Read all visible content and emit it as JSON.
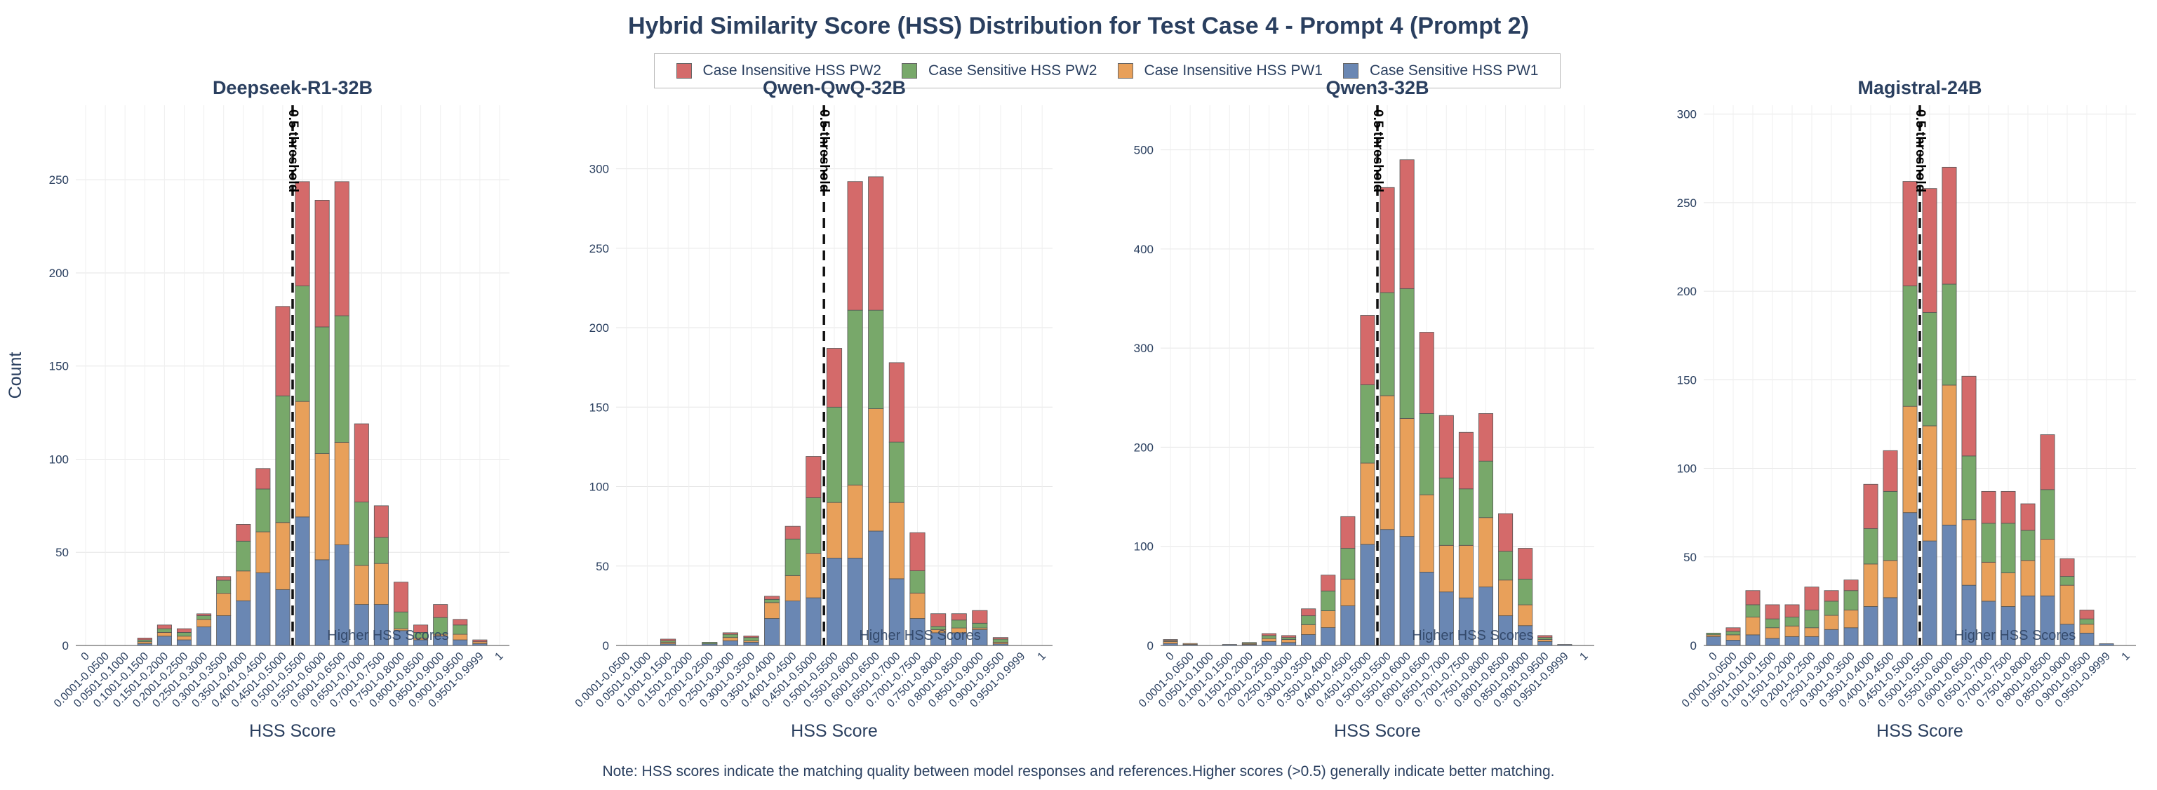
{
  "title": "Hybrid Similarity Score (HSS) Distribution for Test Case 4 - Prompt 4 (Prompt 2)",
  "note": "Note: HSS scores indicate the matching quality between model responses and references.Higher scores (>0.5) generally indicate better matching.",
  "legend": [
    {
      "label": "Case Insensitive HSS PW2",
      "color": "#d46a6a"
    },
    {
      "label": "Case Sensitive HSS PW2",
      "color": "#78a86a"
    },
    {
      "label": "Case Insensitive HSS PW1",
      "color": "#e8a05a"
    },
    {
      "label": "Case Sensitive HSS PW1",
      "color": "#6a87b3"
    }
  ],
  "chart_data": [
    {
      "type": "bar",
      "stacked": true,
      "title": "Deepseek-R1-32B",
      "xlabel": "HSS Score",
      "ylabel": "Count",
      "ylim": [
        0,
        290
      ],
      "yticks": [
        0,
        50,
        100,
        150,
        200,
        250
      ],
      "threshold_label": "0.5 threshold",
      "annotation": "Higher HSS Scores",
      "categories": [
        "0",
        "0.0001-0.0500",
        "0.0501-0.1000",
        "0.1001-0.1500",
        "0.1501-0.2000",
        "0.2001-0.2500",
        "0.2501-0.3000",
        "0.3001-0.3500",
        "0.3501-0.4000",
        "0.4001-0.4500",
        "0.4501-0.5000",
        "0.5001-0.5500",
        "0.5501-0.6000",
        "0.6001-0.6500",
        "0.6501-0.7000",
        "0.7001-0.7500",
        "0.7501-0.8000",
        "0.8001-0.8500",
        "0.8501-0.9000",
        "0.9001-0.9500",
        "0.9501-0.9999",
        "1"
      ],
      "series": [
        {
          "name": "Case Sensitive HSS PW1",
          "values": [
            0,
            0,
            0,
            1,
            5,
            3,
            10,
            16,
            24,
            39,
            30,
            69,
            46,
            54,
            22,
            22,
            8,
            3,
            5,
            3,
            1,
            0
          ]
        },
        {
          "name": "Case Insensitive HSS PW1",
          "values": [
            0,
            0,
            0,
            1,
            2,
            2,
            4,
            12,
            16,
            22,
            36,
            62,
            57,
            55,
            21,
            22,
            1,
            1,
            1,
            3,
            1,
            0
          ]
        },
        {
          "name": "Case Sensitive HSS PW2",
          "values": [
            0,
            0,
            0,
            1,
            2,
            2,
            2,
            7,
            16,
            23,
            68,
            62,
            68,
            68,
            34,
            14,
            9,
            3,
            9,
            5,
            0,
            0
          ]
        },
        {
          "name": "Case Insensitive HSS PW2",
          "values": [
            0,
            0,
            0,
            1,
            2,
            2,
            1,
            2,
            9,
            11,
            48,
            56,
            68,
            72,
            42,
            17,
            16,
            4,
            7,
            3,
            1,
            0
          ]
        }
      ]
    },
    {
      "type": "bar",
      "stacked": true,
      "title": "Qwen-QwQ-32B",
      "xlabel": "HSS Score",
      "ylim": [
        0,
        340
      ],
      "yticks": [
        0,
        50,
        100,
        150,
        200,
        250,
        300
      ],
      "threshold_label": "0.5 threshold",
      "annotation": "Higher HSS Scores",
      "categories": [
        "0.0001-0.0500",
        "0.0501-0.1000",
        "0.1001-0.1500",
        "0.1501-0.2000",
        "0.2001-0.2500",
        "0.2501-0.3000",
        "0.3001-0.3500",
        "0.3501-0.4000",
        "0.4001-0.4500",
        "0.4501-0.5000",
        "0.5001-0.5500",
        "0.5501-0.6000",
        "0.6001-0.6500",
        "0.6501-0.7000",
        "0.7001-0.7500",
        "0.7501-0.8000",
        "0.8001-0.8500",
        "0.8501-0.9000",
        "0.9001-0.9500",
        "0.9501-0.9999",
        "1"
      ],
      "series": [
        {
          "name": "Case Sensitive HSS PW1",
          "values": [
            0,
            0,
            1,
            0,
            1,
            3,
            2,
            17,
            28,
            30,
            55,
            55,
            72,
            42,
            17,
            8,
            8,
            10,
            1,
            0,
            0
          ]
        },
        {
          "name": "Case Insensitive HSS PW1",
          "values": [
            0,
            0,
            1,
            0,
            0,
            2,
            1,
            10,
            16,
            28,
            35,
            46,
            77,
            48,
            16,
            2,
            3,
            1,
            1,
            0,
            0
          ]
        },
        {
          "name": "Case Sensitive HSS PW2",
          "values": [
            0,
            0,
            1,
            0,
            1,
            2,
            2,
            2,
            23,
            35,
            60,
            110,
            62,
            38,
            14,
            2,
            5,
            3,
            2,
            0,
            0
          ]
        },
        {
          "name": "Case Insensitive HSS PW2",
          "values": [
            0,
            0,
            1,
            0,
            0,
            1,
            1,
            2,
            8,
            26,
            37,
            81,
            84,
            50,
            24,
            8,
            4,
            8,
            1,
            0,
            0
          ]
        }
      ]
    },
    {
      "type": "bar",
      "stacked": true,
      "title": "Qwen3-32B",
      "xlabel": "HSS Score",
      "ylim": [
        0,
        545
      ],
      "yticks": [
        0,
        100,
        200,
        300,
        400,
        500
      ],
      "threshold_label": "0.5 threshold",
      "annotation": "Higher HSS Scores",
      "categories": [
        "0",
        "0.0001-0.0500",
        "0.0501-0.1000",
        "0.1001-0.1500",
        "0.1501-0.2000",
        "0.2001-0.2500",
        "0.2501-0.3000",
        "0.3001-0.3500",
        "0.3501-0.4000",
        "0.4001-0.4500",
        "0.4501-0.5000",
        "0.5001-0.5500",
        "0.5501-0.6000",
        "0.6001-0.6500",
        "0.6501-0.7000",
        "0.7001-0.7500",
        "0.7501-0.8000",
        "0.8001-0.8500",
        "0.8501-0.9000",
        "0.9001-0.9500",
        "0.9501-0.9999",
        "1"
      ],
      "series": [
        {
          "name": "Case Sensitive HSS PW1",
          "values": [
            2,
            1,
            0,
            1,
            1,
            4,
            3,
            11,
            18,
            40,
            102,
            117,
            110,
            74,
            54,
            48,
            59,
            30,
            20,
            4,
            1,
            0
          ]
        },
        {
          "name": "Case Insensitive HSS PW1",
          "values": [
            2,
            1,
            0,
            0,
            1,
            3,
            3,
            10,
            17,
            27,
            82,
            135,
            119,
            78,
            47,
            53,
            70,
            36,
            21,
            2,
            0,
            0
          ]
        },
        {
          "name": "Case Sensitive HSS PW2",
          "values": [
            1,
            0,
            0,
            0,
            1,
            3,
            2,
            9,
            20,
            31,
            79,
            104,
            131,
            82,
            68,
            57,
            57,
            29,
            26,
            2,
            0,
            0
          ]
        },
        {
          "name": "Case Insensitive HSS PW2",
          "values": [
            1,
            0,
            0,
            0,
            0,
            2,
            2,
            7,
            16,
            32,
            70,
            106,
            130,
            82,
            63,
            57,
            48,
            38,
            31,
            2,
            0,
            0
          ]
        }
      ]
    },
    {
      "type": "bar",
      "stacked": true,
      "title": "Magistral-24B",
      "xlabel": "HSS Score",
      "ylim": [
        0,
        305
      ],
      "yticks": [
        0,
        50,
        100,
        150,
        200,
        250,
        300
      ],
      "threshold_label": "0.5 threshold",
      "annotation": "Higher HSS Scores",
      "categories": [
        "0",
        "0.0001-0.0500",
        "0.0501-0.1000",
        "0.1001-0.1500",
        "0.1501-0.2000",
        "0.2001-0.2500",
        "0.2501-0.3000",
        "0.3001-0.3500",
        "0.3501-0.4000",
        "0.4001-0.4500",
        "0.4501-0.5000",
        "0.5001-0.5500",
        "0.5501-0.6000",
        "0.6001-0.6500",
        "0.6501-0.7000",
        "0.7001-0.7500",
        "0.7501-0.8000",
        "0.8001-0.8500",
        "0.8501-0.9000",
        "0.9001-0.9500",
        "0.9501-0.9999",
        "1"
      ],
      "series": [
        {
          "name": "Case Sensitive HSS PW1",
          "values": [
            5,
            3,
            6,
            4,
            5,
            5,
            9,
            10,
            22,
            27,
            75,
            59,
            68,
            34,
            25,
            22,
            28,
            28,
            12,
            7,
            1,
            0
          ]
        },
        {
          "name": "Case Insensitive HSS PW1",
          "values": [
            1,
            3,
            10,
            6,
            6,
            5,
            8,
            10,
            24,
            21,
            60,
            65,
            79,
            37,
            22,
            19,
            20,
            32,
            22,
            5,
            0,
            0
          ]
        },
        {
          "name": "Case Sensitive HSS PW2",
          "values": [
            1,
            2,
            7,
            5,
            5,
            10,
            8,
            11,
            20,
            39,
            68,
            64,
            57,
            36,
            22,
            28,
            17,
            28,
            5,
            3,
            0,
            0
          ]
        },
        {
          "name": "Case Insensitive HSS PW2",
          "values": [
            0,
            2,
            8,
            8,
            7,
            13,
            6,
            6,
            25,
            23,
            59,
            70,
            66,
            45,
            18,
            18,
            15,
            31,
            10,
            5,
            0,
            0
          ]
        }
      ]
    }
  ]
}
